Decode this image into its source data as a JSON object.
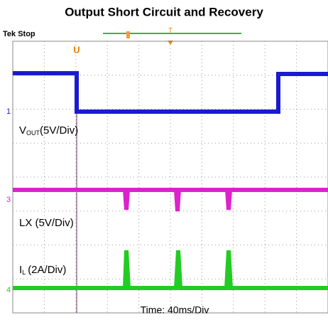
{
  "title": "Output Short Circuit and Recovery",
  "scope": {
    "status": "Tek Stop",
    "trigger_marker": "T",
    "cursor_marker": "U",
    "channels": [
      {
        "marker": "1",
        "label": "V",
        "subscript": "OUT",
        "scale": "(5V/Div)"
      },
      {
        "marker": "3",
        "label": "LX (5V/Div)"
      },
      {
        "marker": "4",
        "label": "I",
        "subscript": "L",
        "scale": "(2A/Div)"
      }
    ],
    "timebase": "Time: 40ms/Div"
  }
}
